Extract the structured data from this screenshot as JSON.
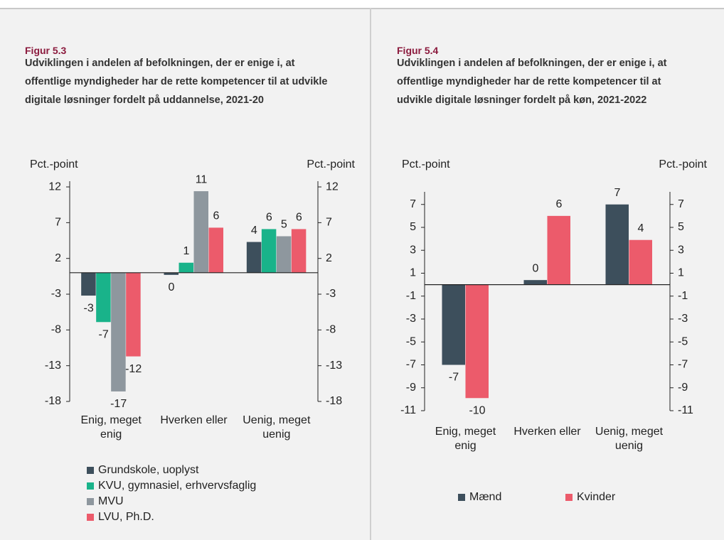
{
  "chart_data": [
    {
      "type": "bar",
      "figure": "Figur 5.3",
      "title": "Udviklingen i andelen af befolkningen, der er enige i, at offentlige myndigheder har de rette kompetencer til at udvikle digitale løsninger fordelt på uddannelse, 2021-20",
      "ylabel": "Pct.-point",
      "y2label": "Pct.-point",
      "categories": [
        "Enig, meget enig",
        "Hverken eller",
        "Uenig, meget uenig"
      ],
      "series": [
        {
          "name": "Grundskole, uoplyst",
          "color": "#3d4f5c",
          "values": [
            -3.2,
            -0.3,
            4.3
          ],
          "value_labels": [
            "-3",
            "0",
            "4"
          ]
        },
        {
          "name": "KVU, gymnasiel, erhvervsfaglig",
          "color": "#19b38a",
          "values": [
            -6.9,
            1.4,
            6.1
          ],
          "value_labels": [
            "-7",
            "1",
            "6"
          ]
        },
        {
          "name": "MVU",
          "color": "#8e979e",
          "values": [
            -16.6,
            11.4,
            5.1
          ],
          "value_labels": [
            "-17",
            "11",
            "5"
          ]
        },
        {
          "name": "LVU, Ph.D.",
          "color": "#ec5b6b",
          "values": [
            -11.7,
            6.3,
            6.1
          ],
          "value_labels": [
            "-12",
            "6",
            "6"
          ]
        }
      ],
      "ylim": [
        -18,
        12.8
      ],
      "yticks": [
        12,
        7,
        2,
        -3,
        -8,
        -13,
        -18
      ],
      "y2lim": [
        -18,
        12.8
      ],
      "y2ticks": [
        12,
        7,
        2,
        -3,
        -8,
        -13,
        -18
      ],
      "legend": "bottom"
    },
    {
      "type": "bar",
      "figure": "Figur 5.4",
      "title": "Udviklingen i  andelen af befolkningen, der er enige i, at offentlige myndigheder har de rette kompetencer til at udvikle digitale løsninger fordelt på køn, 2021-2022",
      "ylabel": "Pct.-point",
      "y2label": "Pct.-point",
      "categories": [
        "Enig, meget enig",
        "Hverken eller",
        "Uenig, meget uenig"
      ],
      "series": [
        {
          "name": "Mænd",
          "color": "#3d4f5c",
          "values": [
            -7.0,
            0.4,
            7.0
          ],
          "value_labels": [
            "-7",
            "0",
            "7"
          ]
        },
        {
          "name": "Kvinder",
          "color": "#ec5b6b",
          "values": [
            -9.9,
            6.0,
            3.9
          ],
          "value_labels": [
            "-10",
            "6",
            "4"
          ]
        }
      ],
      "ylim": [
        -11,
        8.1
      ],
      "yticks": [
        7,
        5,
        3,
        1,
        -1,
        -3,
        -5,
        -7,
        -9,
        -11
      ],
      "y2lim": [
        -11,
        8.1
      ],
      "y2ticks": [
        7,
        5,
        3,
        1,
        -1,
        -3,
        -5,
        -7,
        -9,
        -11
      ],
      "legend": "bottom"
    }
  ]
}
